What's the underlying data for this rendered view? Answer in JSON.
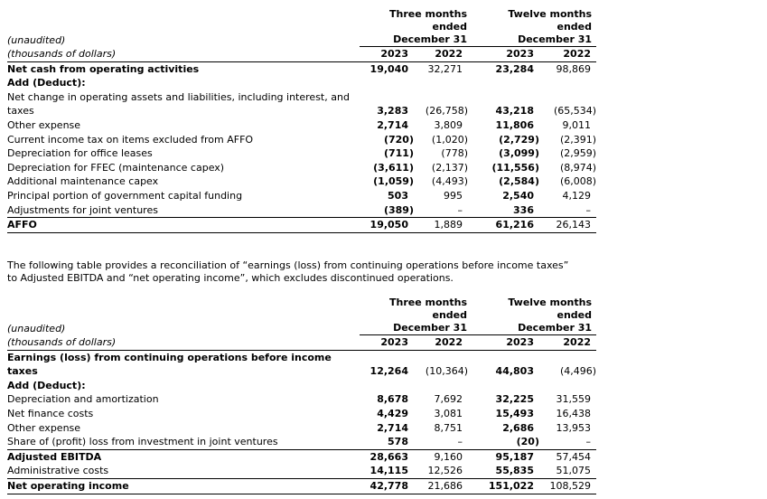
{
  "table1": {
    "notes": [
      "(unaudited)",
      "(thousands of dollars)"
    ],
    "column_groups": [
      [
        "Three months",
        "ended",
        "December 31"
      ],
      [
        "Twelve months",
        "ended",
        "December 31"
      ]
    ],
    "years": [
      "2023",
      "2022",
      "2023",
      "2022"
    ],
    "rows": [
      {
        "label": "Net cash from operating activities",
        "values": [
          "19,040",
          "32,271",
          "23,284",
          "98,869"
        ]
      },
      {
        "label": "Add (Deduct):",
        "values": []
      },
      {
        "label": "Net change in operating assets and liabilities, including interest, and taxes",
        "values": [
          "3,283",
          "(26,758)",
          "43,218",
          "(65,534)"
        ]
      },
      {
        "label": "Other expense",
        "values": [
          "2,714",
          "3,809",
          "11,806",
          "9,011"
        ]
      },
      {
        "label": "Current income tax on items excluded from AFFO",
        "values": [
          "(720)",
          "(1,020)",
          "(2,729)",
          "(2,391)"
        ]
      },
      {
        "label": "Depreciation for office leases",
        "values": [
          "(711)",
          "(778)",
          "(3,099)",
          "(2,959)"
        ]
      },
      {
        "label": "Depreciation for FFEC (maintenance capex)",
        "values": [
          "(3,611)",
          "(2,137)",
          "(11,556)",
          "(8,974)"
        ]
      },
      {
        "label": "Additional maintenance capex",
        "values": [
          "(1,059)",
          "(4,493)",
          "(2,584)",
          "(6,008)"
        ]
      },
      {
        "label": "Principal portion of government capital funding",
        "values": [
          "503",
          "995",
          "2,540",
          "4,129"
        ]
      },
      {
        "label": "Adjustments for joint ventures",
        "values": [
          "(389)",
          "–",
          "336",
          "–"
        ]
      },
      {
        "label": "AFFO",
        "values": [
          "19,050",
          "1,889",
          "61,216",
          "26,143"
        ]
      }
    ]
  },
  "paragraph": "The following table provides a reconciliation of “earnings (loss) from continuing operations before income taxes” to Adjusted EBITDA and “net operating income”, which excludes discontinued operations.",
  "table2": {
    "notes": [
      "(unaudited)",
      "(thousands of dollars)"
    ],
    "column_groups": [
      [
        "Three months",
        "ended",
        "December 31"
      ],
      [
        "Twelve months",
        "ended",
        "December 31"
      ]
    ],
    "years": [
      "2023",
      "2022",
      "2023",
      "2022"
    ],
    "rows": [
      {
        "label": "Earnings (loss) from continuing operations before income taxes",
        "values": [
          "12,264",
          "(10,364)",
          "44,803",
          "(4,496)"
        ]
      },
      {
        "label": "Add (Deduct):",
        "values": []
      },
      {
        "label": "Depreciation and amortization",
        "values": [
          "8,678",
          "7,692",
          "32,225",
          "31,559"
        ]
      },
      {
        "label": "Net finance costs",
        "values": [
          "4,429",
          "3,081",
          "15,493",
          "16,438"
        ]
      },
      {
        "label": "Other expense",
        "values": [
          "2,714",
          "8,751",
          "2,686",
          "13,953"
        ]
      },
      {
        "label": "Share of (profit) loss from investment in joint ventures",
        "values": [
          "578",
          "–",
          "(20)",
          "–"
        ]
      },
      {
        "label": "Adjusted EBITDA",
        "values": [
          "28,663",
          "9,160",
          "95,187",
          "57,454"
        ]
      },
      {
        "label": "Administrative costs",
        "values": [
          "14,115",
          "12,526",
          "55,835",
          "51,075"
        ]
      },
      {
        "label": "Net operating income",
        "values": [
          "42,778",
          "21,686",
          "151,022",
          "108,529"
        ]
      }
    ]
  }
}
